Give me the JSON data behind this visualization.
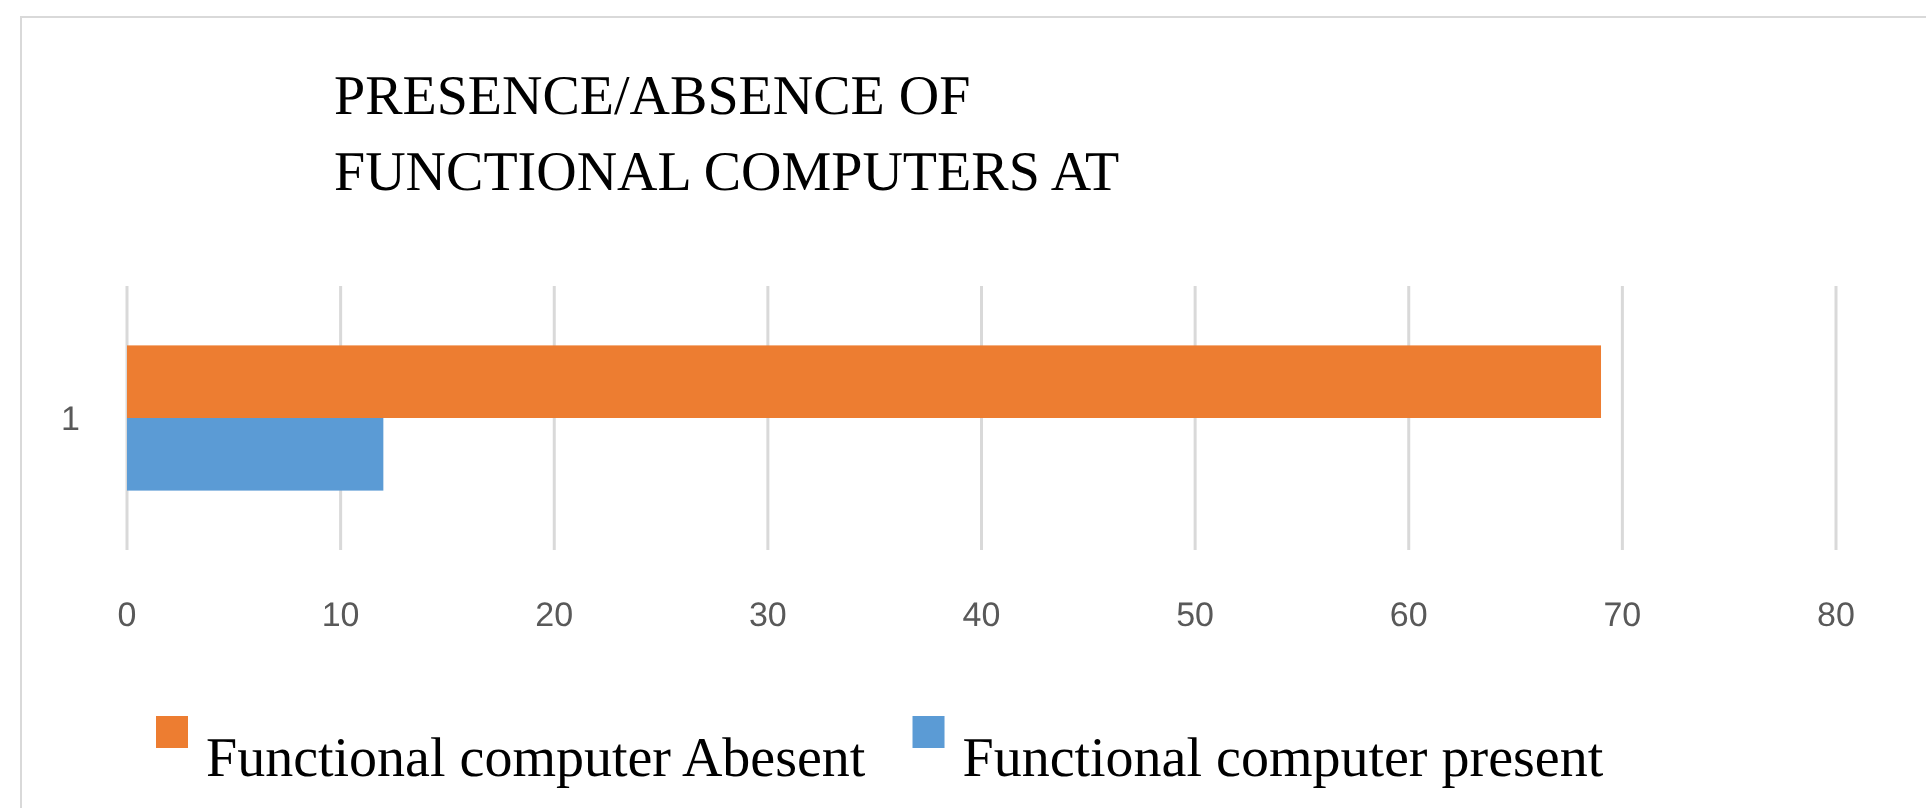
{
  "chart_data": {
    "type": "bar",
    "orientation": "horizontal",
    "title": "PRESENCE/ABSENCE OF FUNCTIONAL COMPUTERS AT",
    "categories": [
      "1"
    ],
    "series": [
      {
        "name": "Functional computer Abesent",
        "color": "#ed7d31",
        "values": [
          69
        ]
      },
      {
        "name": "Functional computer present",
        "color": "#5b9bd5",
        "values": [
          12
        ]
      }
    ],
    "xlim": [
      0,
      80
    ],
    "xticks": [
      0,
      10,
      20,
      30,
      40,
      50,
      60,
      70,
      80
    ],
    "grid": "x",
    "legend": "bottom"
  }
}
